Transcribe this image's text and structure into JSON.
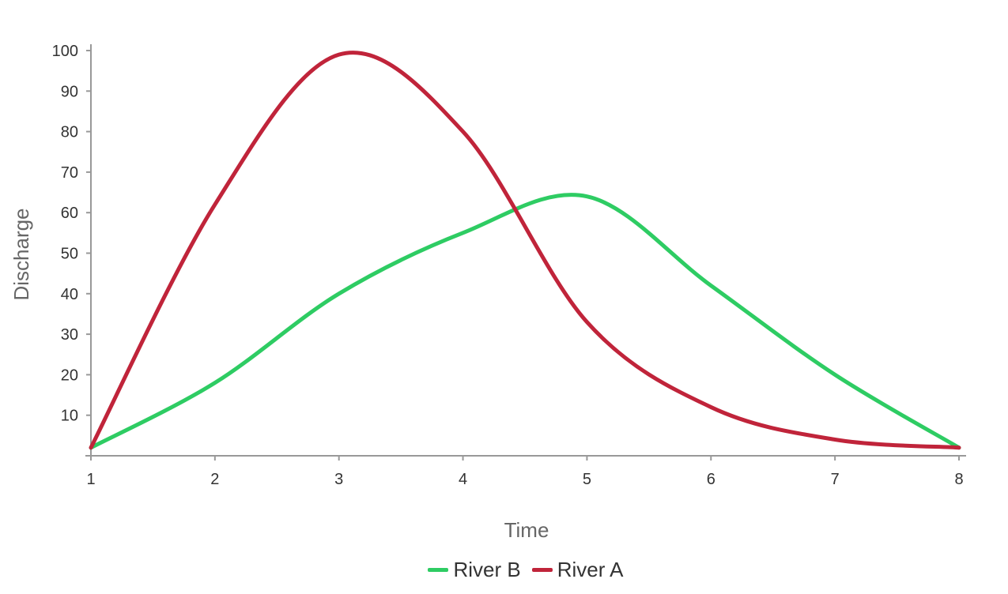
{
  "chart_data": {
    "type": "line",
    "title": "",
    "xlabel": "Time",
    "ylabel": "Discharge",
    "x": [
      1,
      2,
      3,
      4,
      5,
      6,
      7,
      8
    ],
    "xlim": [
      1,
      8
    ],
    "ylim": [
      0,
      100
    ],
    "xticks": [
      "1",
      "2",
      "3",
      "4",
      "5",
      "6",
      "7",
      "8"
    ],
    "yticks": [
      "10",
      "20",
      "30",
      "40",
      "50",
      "60",
      "70",
      "80",
      "90",
      "100"
    ],
    "grid": false,
    "smooth": true,
    "legend_position": "bottom",
    "series": [
      {
        "name": "River B",
        "color": "#2ecc63",
        "values": [
          2,
          18,
          40,
          55,
          64,
          42,
          20,
          2
        ]
      },
      {
        "name": "River A",
        "color": "#c0243a",
        "values": [
          2,
          62,
          99,
          80,
          33,
          12,
          4,
          2
        ]
      }
    ]
  }
}
